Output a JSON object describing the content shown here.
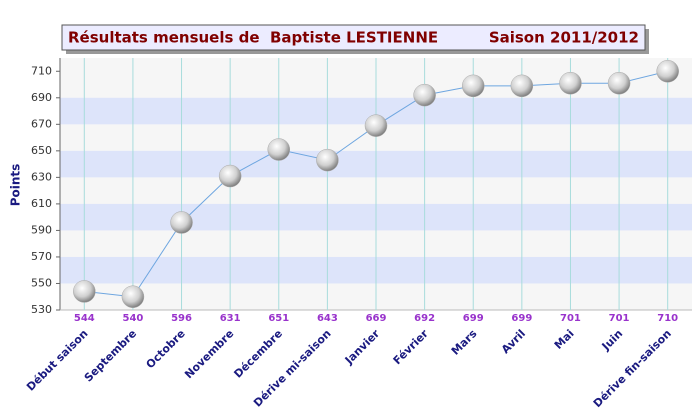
{
  "chart_data": {
    "type": "line",
    "title": "Résultats mensuels de  Baptiste LESTIENNE",
    "subtitle": "Saison 2011/2012",
    "y_label": "Points",
    "categories": [
      "Début saison",
      "Septembre",
      "Octobre",
      "Novembre",
      "Décembre",
      "Dérive mi-saison",
      "Janvier",
      "Février",
      "Mars",
      "Avril",
      "Mai",
      "Juin",
      "Dérive fin-saison"
    ],
    "values": [
      544,
      540,
      596,
      631,
      651,
      643,
      669,
      692,
      699,
      699,
      701,
      701,
      710
    ],
    "color": "#6ea6e0",
    "ylim": [
      530,
      720
    ],
    "yticks": [
      530,
      550,
      570,
      590,
      610,
      630,
      650,
      670,
      690,
      710
    ],
    "grid": true
  }
}
